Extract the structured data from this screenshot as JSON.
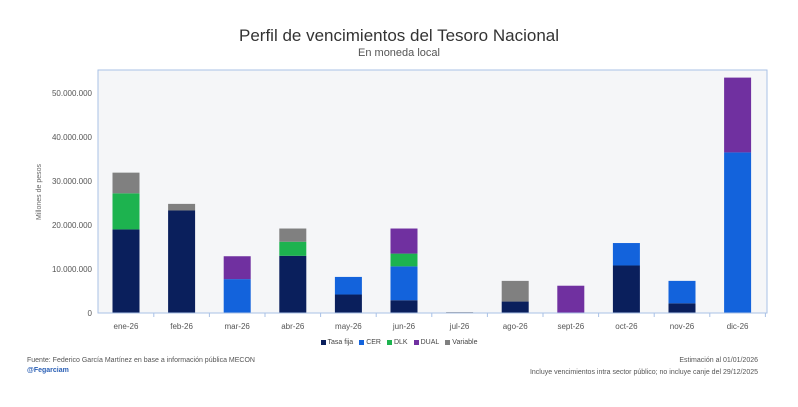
{
  "chart_data": {
    "type": "bar",
    "stacked": true,
    "title": "Perfil de vencimientos del Tesoro Nacional",
    "subtitle": "En moneda local",
    "ylabel": "Millones de pesos",
    "xlabel": "",
    "ylim": [
      0,
      55000000
    ],
    "yticks": [
      0,
      10000000,
      20000000,
      30000000,
      40000000,
      50000000
    ],
    "ytick_labels": [
      "0",
      "10.000.000",
      "20.000.000",
      "30.000.000",
      "40.000.000",
      "50.000.000"
    ],
    "grid": false,
    "legend_position": "bottom",
    "categories": [
      "ene-26",
      "feb-26",
      "mar-26",
      "abr-26",
      "may-26",
      "jun-26",
      "jul-26",
      "ago-26",
      "sept-26",
      "oct-26",
      "nov-26",
      "dic-26"
    ],
    "series": [
      {
        "name": "Tasa fija",
        "color": "#0a1f5c",
        "values": [
          19000000,
          23300000,
          0,
          13000000,
          4200000,
          2900000,
          0,
          2600000,
          0,
          10800000,
          2200000,
          0
        ]
      },
      {
        "name": "CER",
        "color": "#1363dc",
        "values": [
          0,
          0,
          7700000,
          0,
          4000000,
          7700000,
          0,
          0,
          0,
          5100000,
          5100000,
          36500000
        ]
      },
      {
        "name": "DLK",
        "color": "#1db34f",
        "values": [
          8200000,
          0,
          0,
          3200000,
          0,
          2900000,
          0,
          0,
          0,
          0,
          0,
          0
        ]
      },
      {
        "name": "DUAL",
        "color": "#7030a0",
        "values": [
          0,
          0,
          5200000,
          0,
          0,
          5700000,
          0,
          0,
          6200000,
          0,
          0,
          17000000
        ]
      },
      {
        "name": "Variable",
        "color": "#808080",
        "values": [
          4700000,
          1500000,
          0,
          3000000,
          0,
          0,
          200000,
          4700000,
          0,
          0,
          0,
          0
        ]
      }
    ]
  },
  "footer": {
    "source": "Fuente: Federico García Martínez en base a información pública MECON",
    "handle": "@Fegarciam",
    "estimate": "Estimación al 01/01/2026",
    "disclaimer": "Incluye vencimientos intra sector público; no incluye canje del 29/12/2025"
  }
}
